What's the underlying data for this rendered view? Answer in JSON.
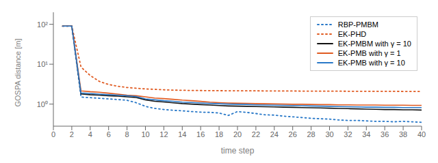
{
  "chart_data": {
    "type": "line",
    "xlabel": "time step",
    "ylabel": "GOSPA distance [m]",
    "log": "y",
    "grid": false,
    "legend": "upper right",
    "xlim": [
      0,
      40
    ],
    "ylim": [
      0.28,
      200
    ],
    "xticks": [
      0,
      2,
      4,
      6,
      8,
      10,
      12,
      14,
      16,
      18,
      20,
      22,
      24,
      26,
      28,
      30,
      32,
      34,
      36,
      38,
      40
    ],
    "yticks": [
      {
        "value": 1,
        "label": "10⁰"
      },
      {
        "value": 10,
        "label": "10¹"
      },
      {
        "value": 100,
        "label": "10²"
      }
    ],
    "x": [
      1,
      2,
      3,
      4,
      5,
      6,
      7,
      8,
      9,
      10,
      11,
      12,
      13,
      14,
      15,
      16,
      17,
      18,
      19,
      20,
      21,
      22,
      23,
      24,
      25,
      26,
      27,
      28,
      29,
      30,
      31,
      32,
      33,
      34,
      35,
      36,
      37,
      38,
      39,
      40
    ],
    "series": [
      {
        "name": "RBP-PMBM",
        "color": "#2878c8",
        "line_style": "dotted",
        "values": [
          90,
          90,
          1.5,
          1.45,
          1.4,
          1.35,
          1.3,
          1.25,
          1.08,
          0.88,
          0.78,
          0.73,
          0.7,
          0.68,
          0.65,
          0.63,
          0.62,
          0.6,
          0.52,
          0.65,
          0.62,
          0.58,
          0.54,
          0.53,
          0.5,
          0.48,
          0.46,
          0.44,
          0.43,
          0.42,
          0.4,
          0.39,
          0.39,
          0.38,
          0.37,
          0.37,
          0.36,
          0.37,
          0.36,
          0.35
        ]
      },
      {
        "name": "EK-PHD",
        "color": "#e05a20",
        "line_style": "dotted",
        "values": [
          90,
          90,
          8.5,
          5.2,
          3.7,
          3.1,
          2.8,
          2.6,
          2.5,
          2.4,
          2.35,
          2.28,
          2.24,
          2.22,
          2.2,
          2.19,
          2.18,
          2.17,
          2.16,
          2.16,
          2.15,
          2.15,
          2.14,
          2.14,
          2.13,
          2.13,
          2.12,
          2.12,
          2.11,
          2.11,
          2.11,
          2.1,
          2.1,
          2.1,
          2.09,
          2.09,
          2.09,
          2.08,
          2.08,
          2.08
        ]
      },
      {
        "name": "EK-PMBM with γ = 10",
        "color": "#111111",
        "line_style": "solid",
        "values": [
          90,
          90,
          1.8,
          1.72,
          1.68,
          1.62,
          1.58,
          1.52,
          1.46,
          1.28,
          1.18,
          1.13,
          1.08,
          1.03,
          1.0,
          0.97,
          0.95,
          0.92,
          0.9,
          0.89,
          0.88,
          0.87,
          0.86,
          0.85,
          0.84,
          0.83,
          0.82,
          0.81,
          0.8,
          0.79,
          0.78,
          0.77,
          0.76,
          0.75,
          0.74,
          0.73,
          0.73,
          0.72,
          0.72,
          0.71
        ]
      },
      {
        "name": "EK-PMB with γ = 1",
        "color": "#e05a20",
        "line_style": "solid",
        "values": [
          90,
          90,
          2.15,
          2.05,
          1.98,
          1.88,
          1.78,
          1.68,
          1.62,
          1.52,
          1.42,
          1.37,
          1.32,
          1.26,
          1.22,
          1.17,
          1.12,
          1.09,
          1.07,
          1.05,
          1.04,
          1.03,
          1.02,
          1.01,
          1.0,
          0.99,
          0.99,
          0.98,
          0.97,
          0.97,
          0.96,
          0.96,
          0.95,
          0.95,
          0.95,
          0.94,
          0.94,
          0.94,
          0.93,
          0.93
        ]
      },
      {
        "name": "EK-PMB with γ = 10",
        "color": "#2878c8",
        "line_style": "solid",
        "values": [
          90,
          90,
          1.9,
          1.85,
          1.78,
          1.72,
          1.68,
          1.62,
          1.55,
          1.35,
          1.28,
          1.22,
          1.18,
          1.12,
          1.1,
          1.07,
          1.04,
          1.02,
          1.0,
          0.99,
          0.98,
          0.96,
          0.95,
          0.94,
          0.93,
          0.92,
          0.91,
          0.9,
          0.89,
          0.88,
          0.87,
          0.86,
          0.85,
          0.84,
          0.84,
          0.83,
          0.83,
          0.82,
          0.82,
          0.82
        ]
      }
    ]
  }
}
